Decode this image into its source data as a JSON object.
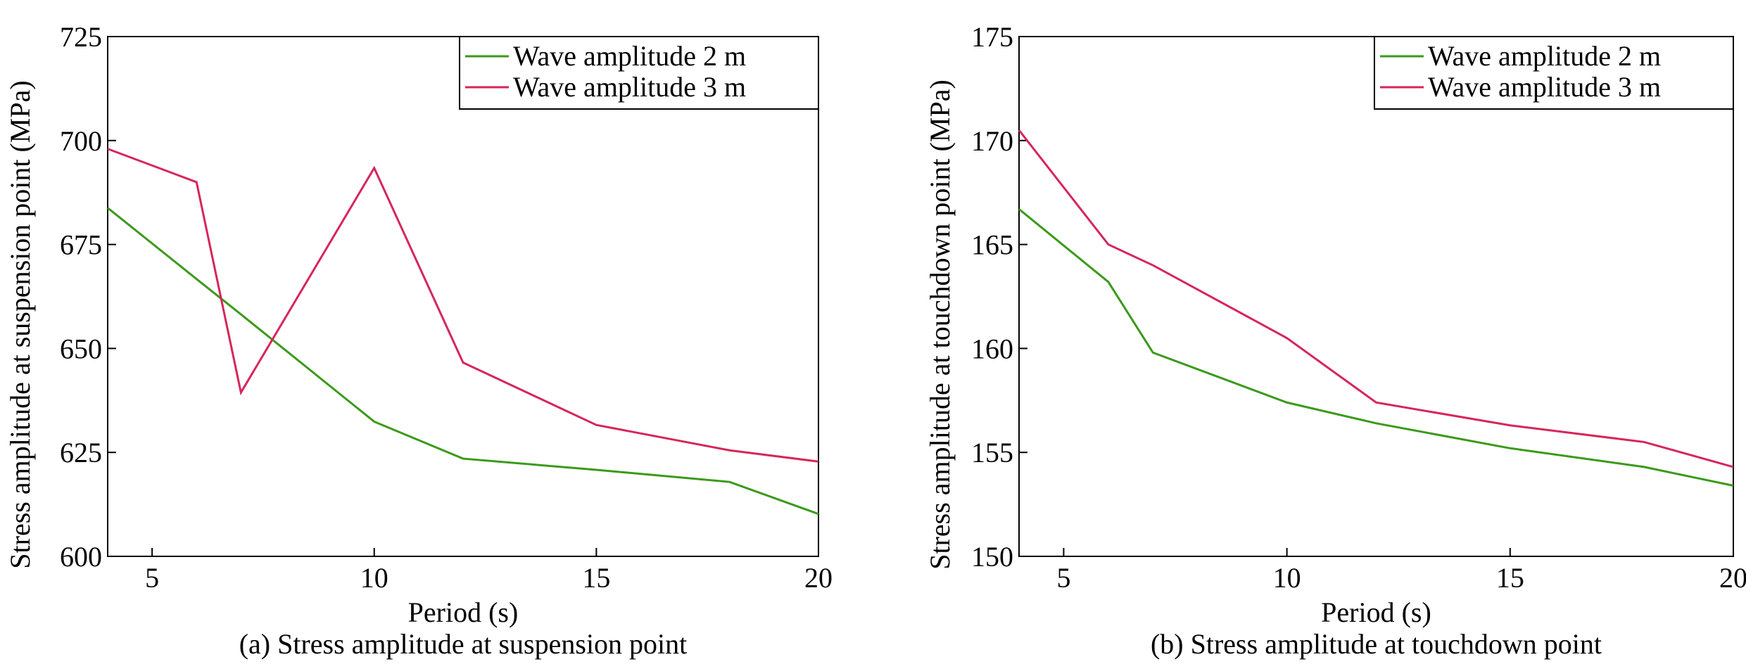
{
  "chart_data": [
    {
      "type": "line",
      "title": "(a) Stress amplitude at suspension point",
      "x_label": "Period (s)",
      "y_label": "Stress amplitude at suspension point (MPa)",
      "x": [
        4,
        6,
        7,
        10,
        12,
        15,
        18,
        20
      ],
      "series": [
        {
          "name": "Wave amplitude 2 m",
          "color": "#3a9a1a",
          "values": [
            683.8,
            666.7,
            658.2,
            632.4,
            623.5,
            620.8,
            617.9,
            610.2
          ]
        },
        {
          "name": "Wave amplitude 3 m",
          "color": "#d6265a",
          "values": [
            698,
            690,
            639.4,
            693.4,
            646.6,
            631.6,
            625.5,
            622.8
          ]
        }
      ],
      "xlim": [
        4,
        20
      ],
      "xticks": [
        5,
        10,
        15,
        20
      ],
      "ylim": [
        600,
        725
      ],
      "yticks": [
        600,
        625,
        650,
        675,
        700,
        725
      ],
      "legend": "upper right"
    },
    {
      "type": "line",
      "title": "(b) Stress amplitude at touchdown point",
      "x_label": "Period (s)",
      "y_label": "Stress amplitude at touchdown point (MPa)",
      "x": [
        4,
        6,
        7,
        10,
        12,
        15,
        18,
        20
      ],
      "series": [
        {
          "name": "Wave amplitude 2 m",
          "color": "#3a9a1a",
          "values": [
            166.7,
            163.2,
            159.8,
            157.4,
            156.4,
            155.2,
            154.3,
            153.4
          ]
        },
        {
          "name": "Wave amplitude 3 m",
          "color": "#d6265a",
          "values": [
            170.5,
            165.0,
            164.0,
            160.5,
            157.4,
            156.3,
            155.5,
            154.3
          ]
        }
      ],
      "xlim": [
        4,
        20
      ],
      "xticks": [
        5,
        10,
        15,
        20
      ],
      "ylim": [
        150,
        175
      ],
      "yticks": [
        150,
        155,
        160,
        165,
        170,
        175
      ],
      "legend": "upper right"
    }
  ]
}
